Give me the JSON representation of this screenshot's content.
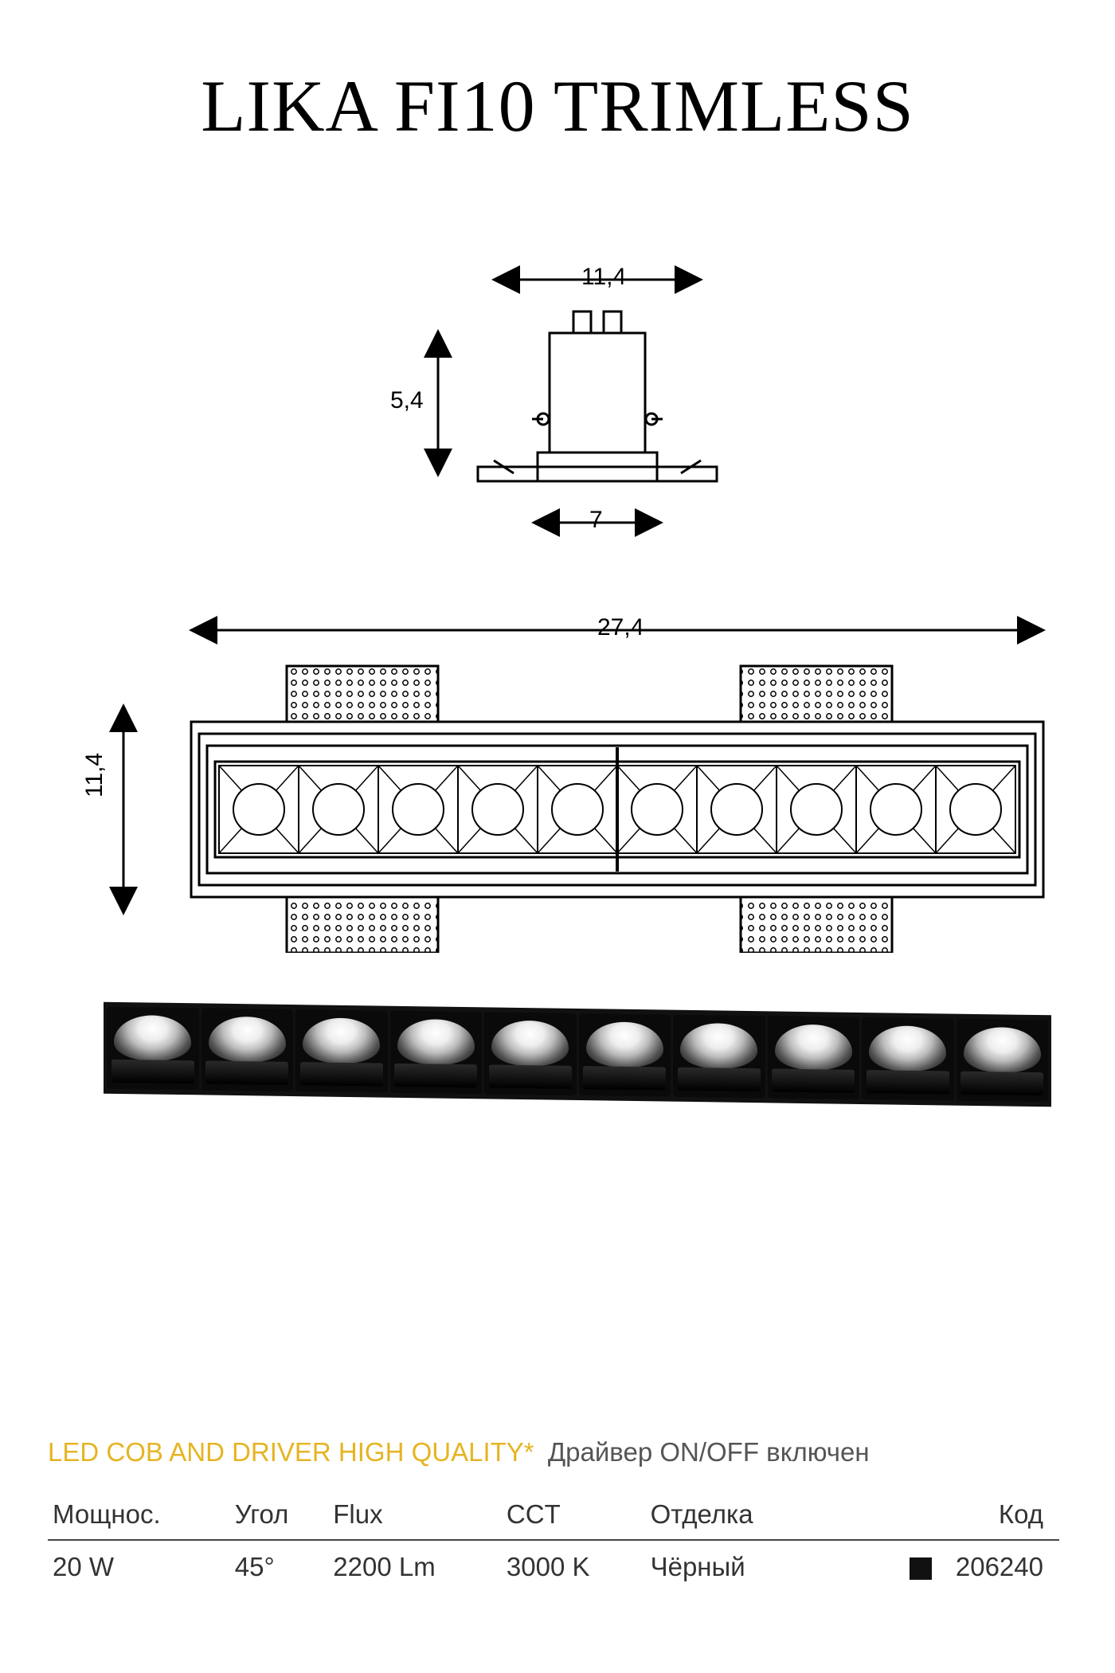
{
  "title": "LIKA FI10 TRIMLESS",
  "dimensions": {
    "side_width": "11,4",
    "side_height": "5,4",
    "side_base": "7",
    "front_length": "27,4",
    "front_height": "11,4"
  },
  "diagram": {
    "stroke": "#000000",
    "stroke_width": 3,
    "fill": "#ffffff",
    "label_fontsize": 30,
    "led_count": 10
  },
  "photo": {
    "cell_count": 10,
    "frame_color": "#111111",
    "highlight_color": "#ffffff"
  },
  "spec_line": {
    "yellow": "LED COB AND DRIVER HIGH QUALITY*",
    "gray": "Драйвер ON/OFF включен",
    "yellow_color": "#e6b422",
    "gray_color": "#555555"
  },
  "spec_table": {
    "columns": [
      "Мощнос.",
      "Угол",
      "Flux",
      "CCT",
      "Отделка",
      "Код"
    ],
    "row": {
      "power": "20 W",
      "angle": "45°",
      "flux": "2200 Lm",
      "cct": "3000 K",
      "finish": "Чёрный",
      "finish_swatch": "#111111",
      "code": "206240"
    },
    "border_color": "#444444",
    "fontsize": 33
  }
}
